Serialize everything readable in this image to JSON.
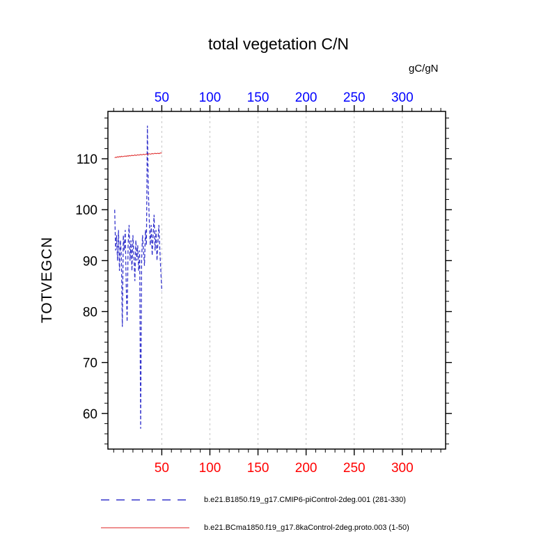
{
  "title": "total vegetation C/N",
  "top_axis": {
    "unit_label": "gC/gN",
    "ticks": [
      50,
      100,
      150,
      200,
      250,
      300
    ],
    "color": "#0000ff"
  },
  "bottom_axis": {
    "ticks": [
      50,
      100,
      150,
      200,
      250,
      300
    ],
    "color": "#ff0000"
  },
  "y_axis": {
    "label": "TOTVEGCN",
    "ticks": [
      60,
      70,
      80,
      90,
      100,
      110
    ]
  },
  "legend": [
    {
      "label": "b.e21.B1850.f19_g17.CMIP6-piControl-2deg.001 (281-330)",
      "color": "#3333cc",
      "style": "dashed"
    },
    {
      "label": "b.e21.BCma1850.f19_g17.8kaControl-2deg.proto.003 (1-50)",
      "color": "#dd2222",
      "style": "solid"
    }
  ],
  "chart_data": {
    "type": "line",
    "title": "total vegetation C/N",
    "ylabel": "TOTVEGCN",
    "top_unit": "gC/gN",
    "xlim": [
      -6,
      345
    ],
    "ylim": [
      53,
      119.3
    ],
    "x_ticks": [
      50,
      100,
      150,
      200,
      250,
      300
    ],
    "x_minor_step": 10,
    "y_ticks": [
      60,
      70,
      80,
      90,
      100,
      110
    ],
    "y_minor_step": 2,
    "grid": "vertical-dashed",
    "x": [
      1,
      2,
      3,
      4,
      5,
      6,
      7,
      8,
      9,
      10,
      11,
      12,
      13,
      14,
      15,
      16,
      17,
      18,
      19,
      20,
      21,
      22,
      23,
      24,
      25,
      26,
      27,
      28,
      29,
      30,
      31,
      32,
      33,
      34,
      35,
      36,
      37,
      38,
      39,
      40,
      41,
      42,
      43,
      44,
      45,
      46,
      47,
      48,
      49,
      50
    ],
    "series": [
      {
        "name": "b.e21.B1850.f19_g17.CMIP6-piControl-2deg.001 (281-330)",
        "color": "#3333cc",
        "style": "dashed",
        "values": [
          100,
          92,
          95,
          90,
          96,
          88,
          94,
          91,
          77,
          95,
          92,
          96,
          85,
          78,
          93,
          97,
          90,
          94,
          88,
          95,
          91,
          86,
          94,
          90,
          93,
          88,
          92,
          57,
          90,
          95,
          92,
          89,
          96,
          93,
          116.5,
          104,
          98,
          93,
          97,
          91,
          95,
          99,
          92,
          96,
          90,
          94,
          97,
          92,
          88,
          84
        ]
      },
      {
        "name": "b.e21.BCma1850.f19_g17.8kaControl-2deg.proto.003 (1-50)",
        "color": "#dd2222",
        "style": "solid",
        "values": [
          110.2,
          110.3,
          110.25,
          110.4,
          110.3,
          110.45,
          110.35,
          110.5,
          110.4,
          110.45,
          110.5,
          110.55,
          110.45,
          110.6,
          110.5,
          110.65,
          110.55,
          110.6,
          110.7,
          110.6,
          110.65,
          110.75,
          110.65,
          110.7,
          110.8,
          110.7,
          110.75,
          110.85,
          110.75,
          110.8,
          110.9,
          110.8,
          110.85,
          110.95,
          110.85,
          110.9,
          111.0,
          110.9,
          110.95,
          111.05,
          110.95,
          111.0,
          111.1,
          111.0,
          111.05,
          111.1,
          111.0,
          111.1,
          111.15,
          111.1
        ]
      }
    ]
  }
}
